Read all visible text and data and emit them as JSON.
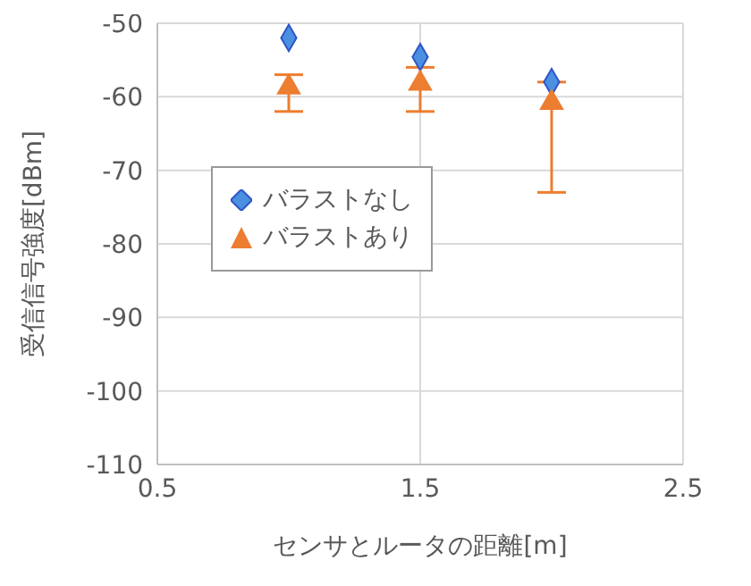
{
  "chart_data": {
    "type": "scatter",
    "xlabel": "センサとルータの距離[m]",
    "ylabel": "受信信号強度[dBm]",
    "xlim": [
      0.5,
      2.5
    ],
    "xticks": [
      0.5,
      1.5,
      2.5
    ],
    "ylim": [
      -110,
      -50
    ],
    "yticks": [
      -110,
      -100,
      -90,
      -80,
      -70,
      -60,
      -50
    ],
    "grid": true,
    "legend": "left",
    "x": [
      1,
      1.5,
      2
    ],
    "series": [
      {
        "name": "バラストなし",
        "color": "#4a8fe0",
        "marker": "diamond",
        "values": [
          -52,
          -54.6,
          -58
        ]
      },
      {
        "name": "バラストあり",
        "color": "#ed7d31",
        "marker": "triangle",
        "values": [
          -58.7,
          -58.2,
          -60.8
        ],
        "errors": [
          [
            -62,
            -57
          ],
          [
            -62,
            -56
          ],
          [
            -73,
            -58
          ]
        ]
      }
    ]
  }
}
